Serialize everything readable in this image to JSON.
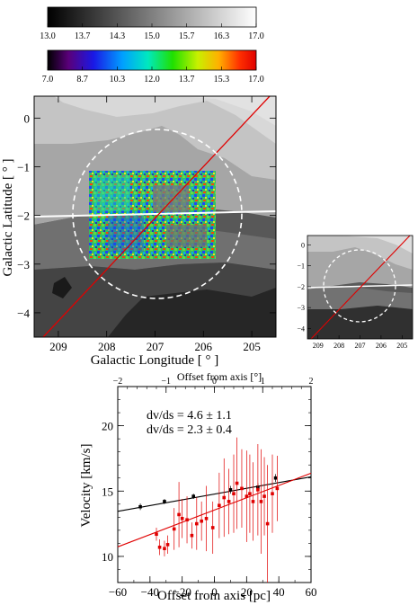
{
  "colorbars": [
    {
      "ticks": [
        "13.0",
        "13.7",
        "14.3",
        "15.0",
        "15.7",
        "16.3",
        "17.0"
      ],
      "scale": "grayscale"
    },
    {
      "ticks": [
        "7.0",
        "8.7",
        "10.3",
        "12.0",
        "13.7",
        "15.3",
        "17.0"
      ],
      "scale": "rainbow"
    }
  ],
  "map": {
    "xlabel": "Galactic Longitude [ ° ]",
    "ylabel": "Galactic Latitude [ ° ]",
    "xticks": [
      "209",
      "208",
      "207",
      "206",
      "205"
    ],
    "yticks": [
      "0",
      "−1",
      "−2",
      "−3",
      "−4"
    ],
    "line_colors": {
      "plane": "#ffffff",
      "axis": "#e00000",
      "circle": "#ffffff"
    }
  },
  "inset": {
    "xticks": [
      "209",
      "208",
      "207",
      "206",
      "205"
    ],
    "yticks": [
      "0",
      "−1",
      "−2",
      "−3",
      "−4"
    ]
  },
  "chart_data": {
    "type": "scatter",
    "title": "",
    "xlabel": "Offset from axis [pc]",
    "xlabel_top": "Offset from axis [°]",
    "ylabel": "Velocity [km/s]",
    "xlim": [
      -60,
      60
    ],
    "ylim": [
      8,
      23
    ],
    "xlim_top": [
      -2,
      2
    ],
    "xticks": [
      "−60",
      "−40",
      "−20",
      "0",
      "20",
      "40",
      "60"
    ],
    "yticks": [
      "10",
      "15",
      "20"
    ],
    "xticks_top": [
      "−2",
      "−1",
      "0",
      "1",
      "2"
    ],
    "annotations": [
      {
        "text": "dv/ds = 4.6 ± 1.1",
        "color": "#e00000"
      },
      {
        "text": "dv/ds = 2.3 ± 0.4",
        "color": "#000000"
      }
    ],
    "series": [
      {
        "color": "#000000",
        "fit": {
          "slope": 0.022,
          "intercept": 14.77
        },
        "points": [
          {
            "x": -46,
            "y": 13.8,
            "err": 0.25
          },
          {
            "x": -31,
            "y": 14.2,
            "err": 0.2
          },
          {
            "x": -13,
            "y": 14.6,
            "err": 0.2
          },
          {
            "x": 10,
            "y": 15.1,
            "err": 0.3
          },
          {
            "x": 27,
            "y": 15.3,
            "err": 0.3
          },
          {
            "x": 38,
            "y": 16.0,
            "err": 0.3
          }
        ]
      },
      {
        "color": "#e00000",
        "fit": {
          "slope": 0.047,
          "intercept": 13.55
        },
        "points": [
          {
            "x": -36,
            "y": 11.7,
            "err": 0.5
          },
          {
            "x": -34,
            "y": 10.7,
            "err": 0.6
          },
          {
            "x": -31,
            "y": 10.6,
            "err": 0.6
          },
          {
            "x": -29,
            "y": 10.9,
            "err": 0.7
          },
          {
            "x": -25,
            "y": 12.1,
            "err": 1.6
          },
          {
            "x": -22,
            "y": 13.2,
            "err": 2.5
          },
          {
            "x": -20,
            "y": 12.9,
            "err": 1.5
          },
          {
            "x": -17,
            "y": 12.8,
            "err": 1.8
          },
          {
            "x": -14,
            "y": 11.6,
            "err": 1.0
          },
          {
            "x": -11,
            "y": 12.5,
            "err": 2.0
          },
          {
            "x": -8,
            "y": 12.7,
            "err": 1.5
          },
          {
            "x": -5,
            "y": 12.9,
            "err": 2.5
          },
          {
            "x": -1,
            "y": 12.2,
            "err": 2.0
          },
          {
            "x": 3,
            "y": 13.9,
            "err": 2.5
          },
          {
            "x": 6,
            "y": 14.5,
            "err": 3.0
          },
          {
            "x": 9,
            "y": 14.2,
            "err": 2.5
          },
          {
            "x": 12,
            "y": 14.8,
            "err": 3.0
          },
          {
            "x": 14,
            "y": 15.6,
            "err": 3.5
          },
          {
            "x": 17,
            "y": 15.2,
            "err": 3.0
          },
          {
            "x": 20,
            "y": 14.6,
            "err": 3.5
          },
          {
            "x": 22,
            "y": 14.8,
            "err": 3.0
          },
          {
            "x": 24,
            "y": 14.2,
            "err": 3.0
          },
          {
            "x": 27,
            "y": 15.1,
            "err": 3.5
          },
          {
            "x": 29,
            "y": 14.2,
            "err": 4.0
          },
          {
            "x": 31,
            "y": 14.6,
            "err": 3.0
          },
          {
            "x": 33,
            "y": 12.5,
            "err": 4.5
          },
          {
            "x": 36,
            "y": 14.8,
            "err": 3.0
          },
          {
            "x": 39,
            "y": 15.2,
            "err": 2.5
          }
        ]
      }
    ]
  }
}
